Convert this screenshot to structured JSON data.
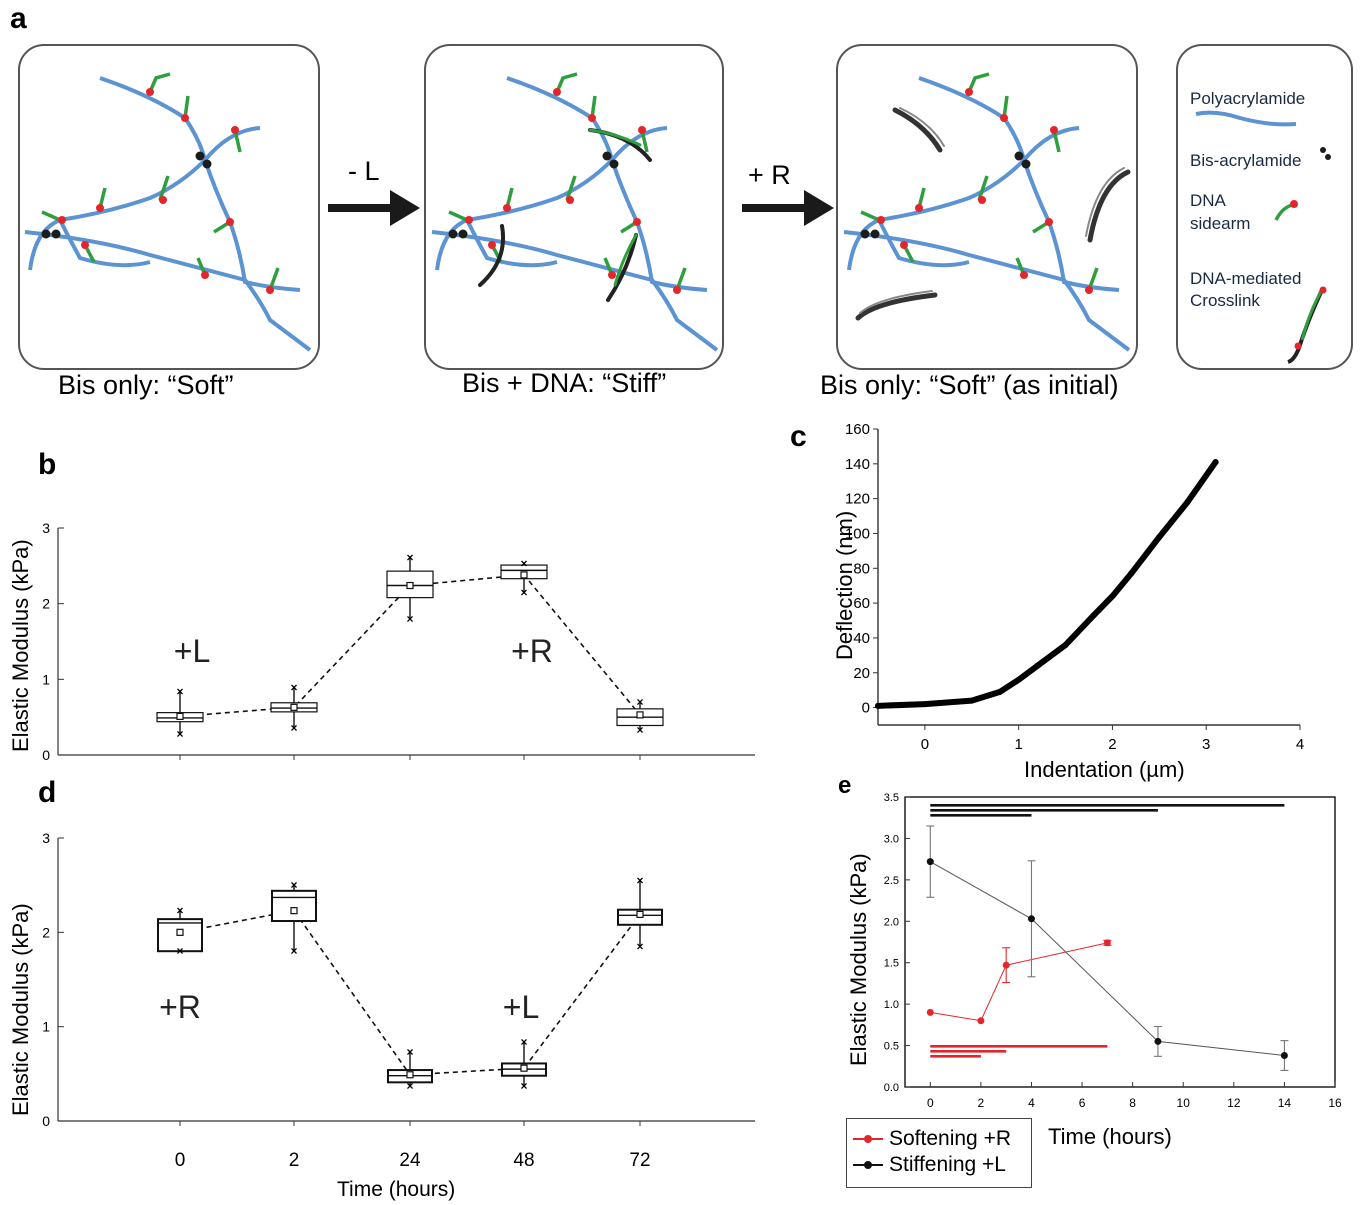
{
  "panel_labels": {
    "a": "a",
    "b": "b",
    "c": "c",
    "d": "d",
    "e": "e"
  },
  "panel_a": {
    "captions": [
      "Bis only: “Soft”",
      "Bis + DNA: “Stiff”",
      "Bis only: “Soft” (as initial)"
    ],
    "step_minus_L": "- L",
    "step_plus_R": "+ R",
    "legend": {
      "polyacrylamide": "Polyacrylamide",
      "bis": "Bis-acrylamide",
      "sidearm_1": "DNA",
      "sidearm_2": "sidearm",
      "crosslink_1": "DNA-mediated",
      "crosslink_2": "Crosslink"
    },
    "colors": {
      "polymer": "#5b93d3",
      "bis": "#1c1c1c",
      "sidearm": "#2e9e3e",
      "node": "#e3262b",
      "crosslinker": "#222222"
    }
  },
  "chart_data": [
    {
      "panel": "b",
      "type": "box",
      "categories": [
        "0",
        "2",
        "24",
        "48",
        "72"
      ],
      "ylabel": "Elastic Modulus (kPa)",
      "ylim": [
        0,
        3
      ],
      "yticks": [
        "0",
        "1",
        "2",
        "3"
      ],
      "annotations": [
        "+L",
        "+R"
      ],
      "boxes": [
        {
          "q1": 0.44,
          "median": 0.49,
          "q3": 0.56,
          "mean": 0.51,
          "min": 0.28,
          "max": 0.84
        },
        {
          "q1": 0.57,
          "median": 0.62,
          "q3": 0.69,
          "mean": 0.63,
          "min": 0.36,
          "max": 0.89
        },
        {
          "q1": 2.08,
          "median": 2.24,
          "q3": 2.43,
          "mean": 2.24,
          "min": 1.8,
          "max": 2.61
        },
        {
          "q1": 2.33,
          "median": 2.44,
          "q3": 2.51,
          "mean": 2.38,
          "min": 2.15,
          "max": 2.53
        },
        {
          "q1": 0.39,
          "median": 0.5,
          "q3": 0.61,
          "mean": 0.53,
          "min": 0.33,
          "max": 0.7
        }
      ]
    },
    {
      "panel": "c",
      "type": "line",
      "xlabel": "Indentation (µm)",
      "ylabel": "Deflection (nm)",
      "xlim": [
        -0.5,
        4
      ],
      "ylim": [
        -10,
        160
      ],
      "xticks": [
        "0",
        "1",
        "2",
        "3",
        "4"
      ],
      "yticks": [
        "0",
        "20",
        "40",
        "60",
        "80",
        "100",
        "120",
        "140",
        "160"
      ],
      "x": [
        -0.5,
        0.0,
        0.5,
        0.8,
        1.0,
        1.2,
        1.5,
        1.8,
        2.0,
        2.2,
        2.5,
        2.8,
        3.1
      ],
      "y": [
        1,
        2,
        4,
        9,
        16,
        24,
        36,
        53,
        64,
        77,
        98,
        118,
        141
      ]
    },
    {
      "panel": "d",
      "type": "box",
      "categories": [
        "0",
        "2",
        "24",
        "48",
        "72"
      ],
      "xlabel": "Time (hours)",
      "ylabel": "Elastic Modulus (kPa)",
      "ylim": [
        0,
        3
      ],
      "yticks": [
        "0",
        "1",
        "2",
        "3"
      ],
      "annotations": [
        "+R",
        "+L"
      ],
      "boxes": [
        {
          "q1": 1.8,
          "median": 2.1,
          "q3": 2.14,
          "mean": 2.0,
          "min": 1.8,
          "max": 2.23
        },
        {
          "q1": 2.12,
          "median": 2.37,
          "q3": 2.44,
          "mean": 2.23,
          "min": 1.8,
          "max": 2.5
        },
        {
          "q1": 0.41,
          "median": 0.48,
          "q3": 0.54,
          "mean": 0.49,
          "min": 0.37,
          "max": 0.73
        },
        {
          "q1": 0.48,
          "median": 0.55,
          "q3": 0.61,
          "mean": 0.56,
          "min": 0.37,
          "max": 0.84
        },
        {
          "q1": 2.08,
          "median": 2.18,
          "q3": 2.24,
          "mean": 2.19,
          "min": 1.85,
          "max": 2.55
        }
      ]
    },
    {
      "panel": "e",
      "type": "line",
      "xlabel": "Time (hours)",
      "ylabel": "Elastic Modulus (kPa)",
      "xlim": [
        -1,
        16
      ],
      "ylim": [
        0,
        3.5
      ],
      "xticks": [
        "0",
        "2",
        "4",
        "6",
        "8",
        "10",
        "12",
        "14",
        "16"
      ],
      "yticks": [
        "0.0",
        "0.5",
        "1.0",
        "1.5",
        "2.0",
        "2.5",
        "3.0",
        "3.5"
      ],
      "series": [
        {
          "name": "Softening +R",
          "color": "#e3262b",
          "x": [
            0,
            2,
            3,
            7
          ],
          "y": [
            0.9,
            0.8,
            1.47,
            1.74
          ],
          "err": [
            0.0,
            0.0,
            0.21,
            0.03
          ]
        },
        {
          "name": "Stiffening +L",
          "color": "#111111",
          "x": [
            0,
            4,
            9,
            14
          ],
          "y": [
            2.72,
            2.03,
            0.55,
            0.38
          ],
          "err": [
            0.43,
            0.7,
            0.18,
            0.18
          ]
        }
      ],
      "significance_bars": {
        "black": [
          [
            0,
            4
          ],
          [
            0,
            9
          ],
          [
            0,
            14
          ]
        ],
        "red": [
          [
            0,
            2
          ],
          [
            0,
            3
          ],
          [
            0,
            7
          ]
        ]
      }
    }
  ]
}
